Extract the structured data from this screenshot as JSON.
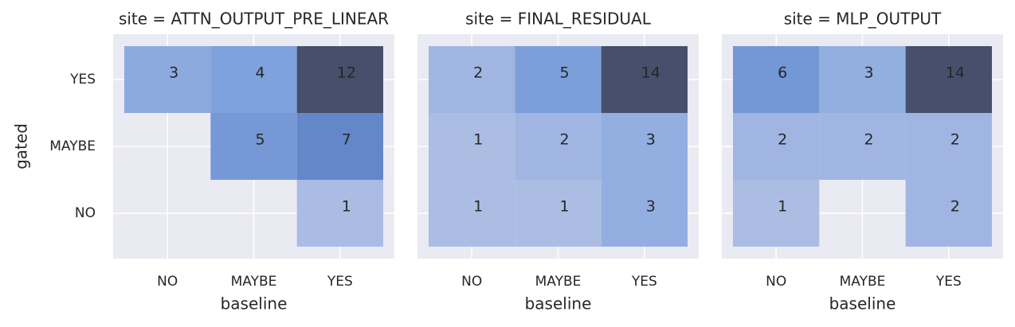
{
  "chart_data": [
    {
      "type": "heatmap",
      "title": "site = ATTN_OUTPUT_PRE_LINEAR",
      "x_label": "baseline",
      "y_label": "gated",
      "x_categories": [
        "NO",
        "MAYBE",
        "YES"
      ],
      "y_categories": [
        "YES",
        "MAYBE",
        "NO"
      ],
      "values": [
        [
          3,
          4,
          12
        ],
        [
          null,
          5,
          7
        ],
        [
          null,
          null,
          1
        ]
      ],
      "colormap": [
        "#b8c4e6",
        "#7fa1dc",
        "#5a7ec2",
        "#464f6b"
      ],
      "grid": true
    },
    {
      "type": "heatmap",
      "title": "site = FINAL_RESIDUAL",
      "x_label": "baseline",
      "x_categories": [
        "NO",
        "MAYBE",
        "YES"
      ],
      "values": [
        [
          2,
          5,
          14
        ],
        [
          1,
          2,
          3
        ],
        [
          1,
          1,
          3
        ]
      ],
      "colormap": [
        "#b8c4e6",
        "#7fa1dc",
        "#5a7ec2",
        "#464f6b"
      ],
      "grid": true
    },
    {
      "type": "heatmap",
      "title": "site = MLP_OUTPUT",
      "x_label": "baseline",
      "x_categories": [
        "NO",
        "MAYBE",
        "YES"
      ],
      "values": [
        [
          6,
          3,
          14
        ],
        [
          2,
          2,
          2
        ],
        [
          1,
          null,
          2
        ]
      ],
      "colormap": [
        "#b8c4e6",
        "#7fa1dc",
        "#5a7ec2",
        "#464f6b"
      ],
      "grid": true
    }
  ]
}
